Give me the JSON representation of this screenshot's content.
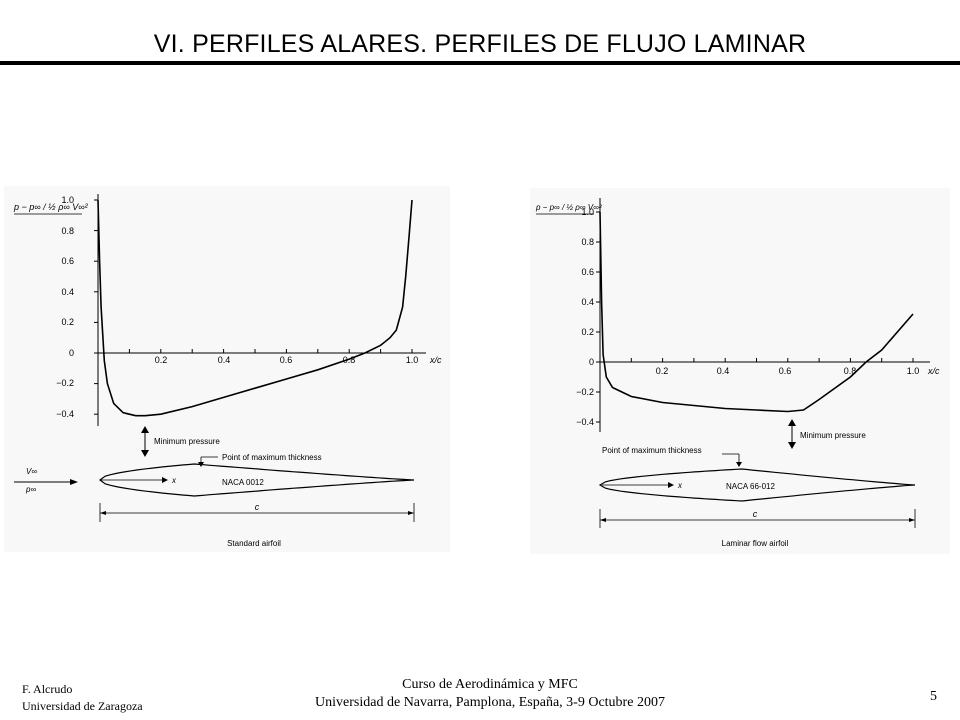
{
  "slide": {
    "title": "VI. PERFILES ALARES. PERFILES DE FLUJO LAMINAR"
  },
  "figures": [
    {
      "id": "standard",
      "ylabel": "p − p∞ / ½ ρ∞ V∞²",
      "ytick_labels": [
        "1.0",
        "0.8",
        "0.6",
        "0.4",
        "0.2",
        "0",
        "−0.2",
        "−0.4"
      ],
      "xtick_labels": [
        "0.2",
        "0.4",
        "0.6",
        "0.8",
        "1.0"
      ],
      "xlabel": "x/c",
      "min_pressure_label": "Minimum pressure",
      "max_thickness_label": "Point of maximum thickness",
      "freestream_v": "V∞",
      "freestream_p": "p∞",
      "x_axis_label": "x",
      "airfoil_name": "NACA 0012",
      "chord_label": "c",
      "caption": "Standard airfoil"
    },
    {
      "id": "laminar",
      "ylabel": "p − p∞ / ½ ρ∞ V∞²",
      "ytick_labels": [
        "1.0",
        "0.8",
        "0.6",
        "0.4",
        "0.2",
        "0",
        "−0.2",
        "−0.4"
      ],
      "xtick_labels": [
        "0.2",
        "0.4",
        "0.6",
        "0.8",
        "1.0"
      ],
      "xlabel": "x/c",
      "min_pressure_label": "Minimum pressure",
      "max_thickness_label": "Point of maximum thickness",
      "x_axis_label": "x",
      "airfoil_name": "NACA 66-012",
      "chord_label": "c",
      "caption": "Laminar flow airfoil"
    }
  ],
  "chart_data": [
    {
      "type": "line",
      "title": "",
      "xlabel": "x/c",
      "ylabel": "(p − p∞)/(½ ρ∞ V∞²)",
      "xlim": [
        0,
        1.0
      ],
      "ylim": [
        -0.4,
        1.0
      ],
      "series": [
        {
          "x": [
            0,
            0.005,
            0.01,
            0.02,
            0.03,
            0.05,
            0.08,
            0.12,
            0.15,
            0.2,
            0.3,
            0.4,
            0.5,
            0.6,
            0.7,
            0.8,
            0.85,
            0.9,
            0.93,
            0.95,
            0.97,
            0.98,
            0.99,
            1.0
          ],
          "y": [
            1.0,
            0.6,
            0.3,
            -0.05,
            -0.2,
            -0.33,
            -0.39,
            -0.41,
            -0.41,
            -0.4,
            -0.35,
            -0.29,
            -0.23,
            -0.17,
            -0.11,
            -0.04,
            0.0,
            0.05,
            0.1,
            0.15,
            0.3,
            0.5,
            0.75,
            1.0
          ]
        }
      ]
    },
    {
      "type": "line",
      "title": "",
      "xlabel": "x/c",
      "ylabel": "(p − p∞)/(½ ρ∞ V∞²)",
      "xlim": [
        0,
        1.0
      ],
      "ylim": [
        -0.4,
        1.0
      ],
      "series": [
        {
          "x": [
            0,
            0.005,
            0.01,
            0.02,
            0.04,
            0.07,
            0.1,
            0.2,
            0.3,
            0.4,
            0.5,
            0.6,
            0.65,
            0.7,
            0.8,
            0.85,
            0.9,
            1.0
          ],
          "y": [
            1.0,
            0.4,
            0.05,
            -0.1,
            -0.17,
            -0.2,
            -0.23,
            -0.27,
            -0.29,
            -0.31,
            -0.32,
            -0.33,
            -0.32,
            -0.25,
            -0.1,
            0.0,
            0.08,
            0.32
          ]
        }
      ]
    }
  ],
  "footer": {
    "author": "F. Alcrudo",
    "institution": "Universidad de Zaragoza",
    "course": "Curso de Aerodinámica y MFC",
    "venue": "Universidad de Navarra, Pamplona, España, 3-9 Octubre 2007",
    "page": "5"
  }
}
